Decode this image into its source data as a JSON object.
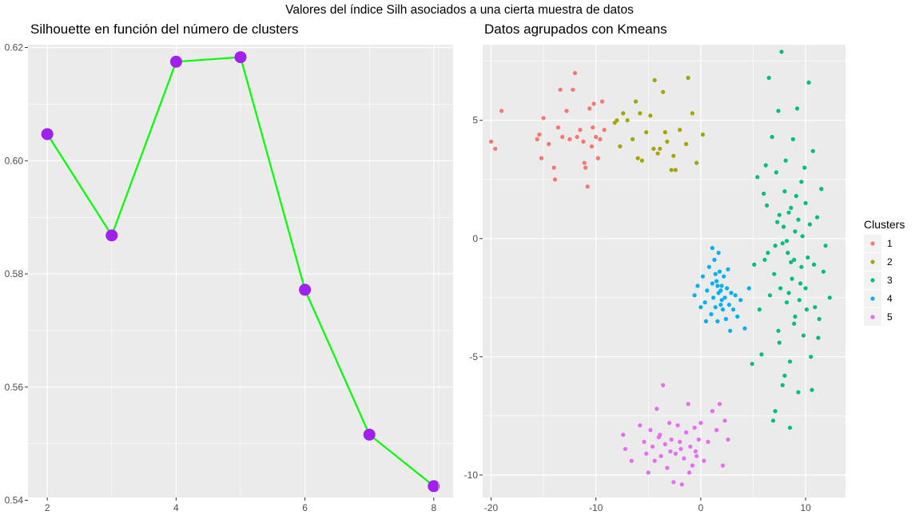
{
  "figure": {
    "suptitle": "Valores del índice Silh asociados a una cierta muestra de datos"
  },
  "chart_data": [
    {
      "type": "line",
      "title": "Silhouette en función del número de clusters",
      "xlabel": "",
      "ylabel": "",
      "x": [
        2,
        3,
        4,
        5,
        6,
        7,
        8
      ],
      "series": [
        {
          "values": [
            0.6047,
            0.5868,
            0.6175,
            0.6183,
            0.5772,
            0.5516,
            0.5425
          ]
        }
      ],
      "xlim": [
        1.7,
        8.3
      ],
      "ylim": [
        0.5405,
        0.6205
      ],
      "xticks": [
        "2",
        "4",
        "6",
        "8"
      ],
      "yticks": [
        "0.54",
        "0.56",
        "0.58",
        "0.60",
        "0.62"
      ],
      "line_color": "#00FF00",
      "point_color": "#A020F0",
      "grid": true
    },
    {
      "type": "scatter",
      "title": "Datos agrupados con Kmeans",
      "xlabel": "",
      "ylabel": "",
      "xlim": [
        -20.8,
        13.8
      ],
      "ylim": [
        -10.95,
        8.2
      ],
      "xticks": [
        "-20",
        "-10",
        "0",
        "10"
      ],
      "yticks": [
        "-10",
        "-5",
        "0",
        "5"
      ],
      "legend": {
        "title": "Clusters",
        "position": "right",
        "labels": [
          "1",
          "2",
          "3",
          "4",
          "5"
        ]
      },
      "colors": [
        "#F8766D",
        "#A3A500",
        "#00BF7D",
        "#00B0F6",
        "#E76BF3"
      ],
      "grid": true,
      "clusters": [
        {
          "name": "1",
          "points": [
            [
              -20.0,
              4.1
            ],
            [
              -19.6,
              3.8
            ],
            [
              -19.0,
              5.4
            ],
            [
              -15.6,
              4.2
            ],
            [
              -15.4,
              4.4
            ],
            [
              -15.2,
              3.4
            ],
            [
              -15.0,
              5.1
            ],
            [
              -14.5,
              4.0
            ],
            [
              -14.0,
              3.0
            ],
            [
              -13.6,
              4.7
            ],
            [
              -13.4,
              6.3
            ],
            [
              -13.2,
              4.3
            ],
            [
              -12.8,
              5.4
            ],
            [
              -12.5,
              4.2
            ],
            [
              -12.2,
              6.3
            ],
            [
              -12.0,
              7.0
            ],
            [
              -11.8,
              4.3
            ],
            [
              -11.5,
              4.6
            ],
            [
              -11.2,
              4.1
            ],
            [
              -11.0,
              3.0
            ],
            [
              -10.8,
              2.2
            ],
            [
              -10.6,
              5.5
            ],
            [
              -10.4,
              3.9
            ],
            [
              -10.2,
              5.7
            ],
            [
              -10.0,
              4.3
            ],
            [
              -9.8,
              3.4
            ],
            [
              -9.6,
              4.2
            ],
            [
              -9.4,
              5.8
            ],
            [
              -9.2,
              4.6
            ],
            [
              -13.9,
              2.5
            ],
            [
              -11.1,
              3.2
            ],
            [
              -10.3,
              4.7
            ]
          ]
        },
        {
          "name": "2",
          "points": [
            [
              -8.2,
              4.9
            ],
            [
              -8.0,
              5.0
            ],
            [
              -7.7,
              3.9
            ],
            [
              -7.4,
              5.3
            ],
            [
              -7.0,
              5.0
            ],
            [
              -6.5,
              4.2
            ],
            [
              -6.2,
              5.8
            ],
            [
              -6.0,
              3.4
            ],
            [
              -5.8,
              5.3
            ],
            [
              -5.6,
              3.3
            ],
            [
              -5.2,
              4.5
            ],
            [
              -4.8,
              5.2
            ],
            [
              -4.5,
              3.8
            ],
            [
              -4.4,
              6.7
            ],
            [
              -4.1,
              3.6
            ],
            [
              -3.9,
              3.8
            ],
            [
              -3.6,
              6.2
            ],
            [
              -3.4,
              4.5
            ],
            [
              -3.2,
              4.1
            ],
            [
              -2.8,
              2.9
            ],
            [
              -2.6,
              3.5
            ],
            [
              -2.4,
              2.9
            ],
            [
              -2.0,
              4.6
            ],
            [
              -1.4,
              4.0
            ],
            [
              -1.2,
              6.8
            ],
            [
              -0.8,
              5.3
            ],
            [
              -0.4,
              3.2
            ],
            [
              0.2,
              4.4
            ]
          ]
        },
        {
          "name": "3",
          "points": [
            [
              4.9,
              -5.3
            ],
            [
              5.1,
              -1.1
            ],
            [
              5.4,
              2.6
            ],
            [
              5.6,
              -3.0
            ],
            [
              5.8,
              -4.9
            ],
            [
              6.0,
              1.9
            ],
            [
              6.2,
              3.1
            ],
            [
              6.4,
              -0.6
            ],
            [
              6.5,
              6.8
            ],
            [
              6.6,
              -2.4
            ],
            [
              6.8,
              4.3
            ],
            [
              7.0,
              -1.5
            ],
            [
              7.1,
              -7.3
            ],
            [
              7.3,
              0.7
            ],
            [
              7.4,
              5.4
            ],
            [
              7.5,
              -4.4
            ],
            [
              7.7,
              7.9
            ],
            [
              7.8,
              -0.2
            ],
            [
              8.0,
              -5.8
            ],
            [
              8.1,
              3.3
            ],
            [
              8.2,
              -2.7
            ],
            [
              8.4,
              1.1
            ],
            [
              8.5,
              -8.0
            ],
            [
              8.6,
              -1.0
            ],
            [
              8.8,
              4.2
            ],
            [
              8.9,
              -3.6
            ],
            [
              9.0,
              0.3
            ],
            [
              9.2,
              5.5
            ],
            [
              9.3,
              -6.5
            ],
            [
              9.5,
              -1.9
            ],
            [
              9.6,
              2.4
            ],
            [
              9.8,
              -4.1
            ],
            [
              10.0,
              1.5
            ],
            [
              10.2,
              -0.8
            ],
            [
              10.3,
              6.6
            ],
            [
              10.5,
              -5.0
            ],
            [
              10.7,
              3.7
            ],
            [
              10.9,
              -2.9
            ],
            [
              11.1,
              0.9
            ],
            [
              11.3,
              -3.4
            ],
            [
              11.5,
              2.1
            ],
            [
              11.7,
              -1.4
            ],
            [
              11.9,
              -0.3
            ],
            [
              12.3,
              -2.5
            ],
            [
              6.1,
              -0.9
            ],
            [
              6.3,
              1.4
            ],
            [
              7.6,
              -2.1
            ],
            [
              7.9,
              0.5
            ],
            [
              8.3,
              -0.6
            ],
            [
              8.7,
              -1.7
            ],
            [
              9.1,
              1.8
            ],
            [
              9.4,
              -2.6
            ],
            [
              9.7,
              0.1
            ],
            [
              10.1,
              -3.0
            ],
            [
              10.4,
              0.6
            ],
            [
              10.8,
              -1.1
            ],
            [
              11.2,
              -4.2
            ],
            [
              7.2,
              2.8
            ],
            [
              8.0,
              2.0
            ],
            [
              9.9,
              3.0
            ],
            [
              7.4,
              -3.9
            ],
            [
              9.0,
              -3.3
            ],
            [
              8.5,
              -5.2
            ],
            [
              7.8,
              -6.2
            ],
            [
              10.6,
              -6.4
            ],
            [
              6.9,
              -7.7
            ],
            [
              8.2,
              -0.1
            ],
            [
              8.6,
              1.3
            ],
            [
              7.1,
              -0.3
            ],
            [
              9.3,
              0.8
            ],
            [
              10.0,
              -2.1
            ],
            [
              8.9,
              -0.9
            ],
            [
              7.5,
              1.0
            ],
            [
              9.6,
              -1.2
            ],
            [
              8.4,
              -2.3
            ]
          ]
        },
        {
          "name": "4",
          "points": [
            [
              -0.6,
              -2.4
            ],
            [
              -0.3,
              -2.0
            ],
            [
              0.0,
              -2.9
            ],
            [
              0.2,
              -1.6
            ],
            [
              0.4,
              -2.7
            ],
            [
              0.6,
              -2.2
            ],
            [
              0.8,
              -1.2
            ],
            [
              1.0,
              -3.2
            ],
            [
              1.1,
              -1.9
            ],
            [
              1.2,
              -2.5
            ],
            [
              1.3,
              -0.9
            ],
            [
              1.4,
              -2.9
            ],
            [
              1.5,
              -1.8
            ],
            [
              1.6,
              -3.5
            ],
            [
              1.7,
              -2.3
            ],
            [
              1.8,
              -1.4
            ],
            [
              1.9,
              -2.8
            ],
            [
              2.0,
              -2.0
            ],
            [
              2.1,
              -3.0
            ],
            [
              2.2,
              -1.6
            ],
            [
              2.3,
              -2.5
            ],
            [
              2.4,
              -3.4
            ],
            [
              2.5,
              -2.1
            ],
            [
              2.6,
              -1.3
            ],
            [
              2.7,
              -2.8
            ],
            [
              2.9,
              -2.3
            ],
            [
              3.1,
              -3.0
            ],
            [
              3.3,
              -2.4
            ],
            [
              3.5,
              -3.3
            ],
            [
              3.8,
              -2.6
            ],
            [
              4.2,
              -3.8
            ],
            [
              1.1,
              -0.4
            ],
            [
              1.7,
              -0.6
            ],
            [
              0.5,
              -3.5
            ],
            [
              2.8,
              -3.9
            ],
            [
              4.6,
              -2.1
            ],
            [
              1.4,
              -1.5
            ],
            [
              1.9,
              -2.2
            ],
            [
              2.0,
              -2.6
            ],
            [
              1.6,
              -2.0
            ]
          ]
        },
        {
          "name": "5",
          "points": [
            [
              -7.4,
              -8.3
            ],
            [
              -7.2,
              -8.9
            ],
            [
              -6.6,
              -9.4
            ],
            [
              -5.8,
              -7.9
            ],
            [
              -5.4,
              -8.6
            ],
            [
              -5.2,
              -9.1
            ],
            [
              -5.0,
              -9.9
            ],
            [
              -4.8,
              -8.1
            ],
            [
              -4.6,
              -8.8
            ],
            [
              -4.4,
              -9.4
            ],
            [
              -4.2,
              -7.2
            ],
            [
              -4.0,
              -8.4
            ],
            [
              -3.8,
              -9.2
            ],
            [
              -3.6,
              -6.2
            ],
            [
              -3.4,
              -8.7
            ],
            [
              -3.2,
              -9.7
            ],
            [
              -3.0,
              -7.8
            ],
            [
              -2.8,
              -8.5
            ],
            [
              -2.6,
              -10.3
            ],
            [
              -2.4,
              -9.1
            ],
            [
              -2.2,
              -7.9
            ],
            [
              -2.0,
              -8.6
            ],
            [
              -1.8,
              -10.4
            ],
            [
              -1.6,
              -9.3
            ],
            [
              -1.4,
              -8.2
            ],
            [
              -1.2,
              -7.0
            ],
            [
              -1.0,
              -8.8
            ],
            [
              -0.8,
              -9.6
            ],
            [
              -0.6,
              -8.0
            ],
            [
              -0.4,
              -9.2
            ],
            [
              -0.2,
              -8.5
            ],
            [
              0.0,
              -7.8
            ],
            [
              0.3,
              -9.4
            ],
            [
              0.7,
              -8.6
            ],
            [
              1.1,
              -7.3
            ],
            [
              1.5,
              -8.1
            ],
            [
              1.8,
              -7.0
            ],
            [
              2.1,
              -9.6
            ],
            [
              2.3,
              -7.7
            ],
            [
              2.6,
              -8.5
            ],
            [
              -3.9,
              -8.3
            ],
            [
              -2.9,
              -9.0
            ],
            [
              -1.9,
              -8.9
            ],
            [
              -1.1,
              -9.9
            ],
            [
              -0.5,
              -9.0
            ]
          ]
        }
      ]
    }
  ]
}
